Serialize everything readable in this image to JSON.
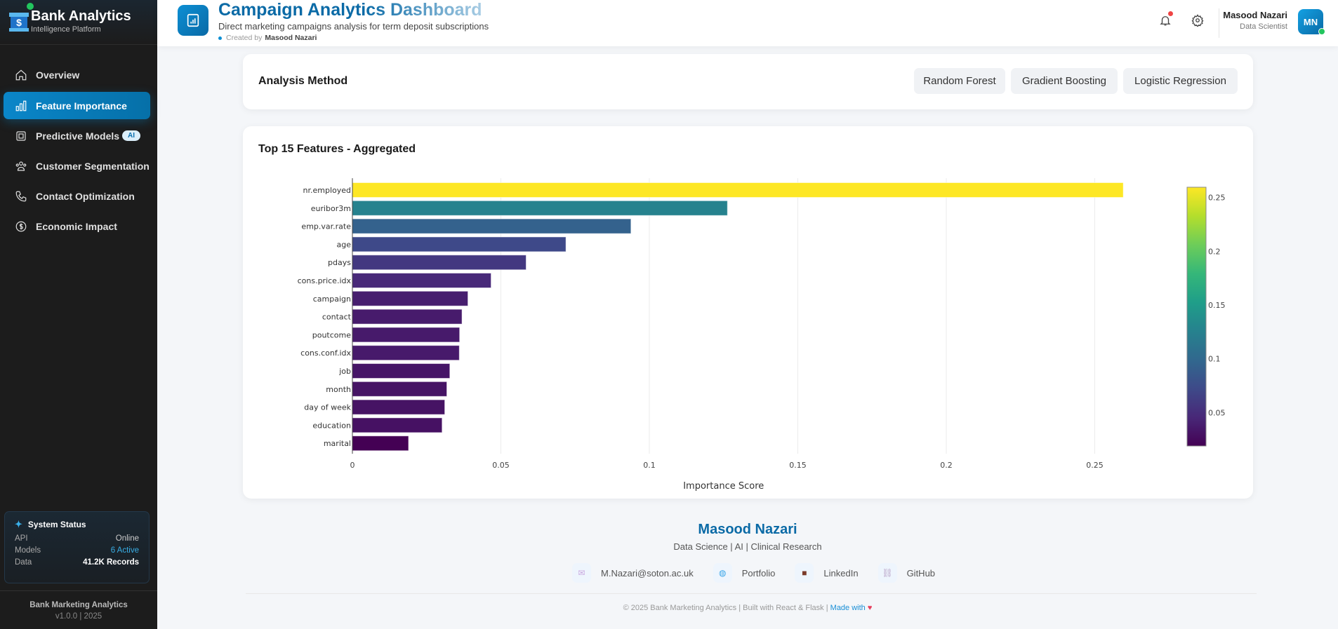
{
  "sidebar": {
    "brand": "Bank Analytics",
    "brand_sub": "Intelligence Platform",
    "items": [
      {
        "label": "Overview",
        "icon": "home-icon"
      },
      {
        "label": "Feature Importance",
        "icon": "bar-chart-icon",
        "active": true
      },
      {
        "label": "Predictive Models",
        "icon": "cpu-icon",
        "badge": "AI"
      },
      {
        "label": "Customer Segmentation",
        "icon": "users-icon"
      },
      {
        "label": "Contact Optimization",
        "icon": "phone-icon"
      },
      {
        "label": "Economic Impact",
        "icon": "dollar-icon"
      }
    ],
    "status": {
      "title": "System Status",
      "rows": [
        {
          "label": "API",
          "value": "Online"
        },
        {
          "label": "Models",
          "value": "6 Active"
        },
        {
          "label": "Data",
          "value": "41.2K Records"
        }
      ]
    },
    "footer_title": "Bank Marketing Analytics",
    "footer_version": "v1.0.0 | 2025"
  },
  "header": {
    "title": "Campaign Analytics Dashboard",
    "subtitle": "Direct marketing campaigns analysis for term deposit subscriptions",
    "created_by_label": "Created by",
    "created_by_name": "Masood Nazari",
    "user_name": "Masood Nazari",
    "user_role": "Data Scientist",
    "avatar_initials": "MN",
    "has_notification": true
  },
  "method": {
    "title": "Analysis Method",
    "buttons": [
      "Random Forest",
      "Gradient Boosting",
      "Logistic Regression"
    ]
  },
  "chart_card": {
    "title": "Top 15 Features - Aggregated"
  },
  "chart_data": {
    "type": "bar",
    "orientation": "horizontal",
    "title": "Top 15 Features - Aggregated",
    "xlabel": "Importance Score",
    "ylabel": "",
    "categories": [
      "nr.employed",
      "euribor3m",
      "emp.var.rate",
      "age",
      "pdays",
      "cons.price.idx",
      "campaign",
      "contact",
      "poutcome",
      "cons.conf.idx",
      "job",
      "month",
      "day of week",
      "education",
      "marital"
    ],
    "values": [
      0.2596,
      0.1263,
      0.0938,
      0.0719,
      0.0585,
      0.0467,
      0.0389,
      0.0369,
      0.0361,
      0.036,
      0.0328,
      0.0318,
      0.0311,
      0.0302,
      0.0189
    ],
    "xlim": [
      0,
      0.27
    ],
    "xticks": [
      "0",
      "0.05",
      "0.1",
      "0.15",
      "0.2",
      "0.25"
    ],
    "grid": true,
    "colorscale": "Viridis",
    "colorbar_ticks": [
      "0.05",
      "0.1",
      "0.15",
      "0.2",
      "0.25"
    ]
  },
  "footer": {
    "name": "Masood Nazari",
    "tagline": "Data Science | AI | Clinical Research",
    "links": [
      {
        "label": "M.Nazari@soton.ac.uk",
        "icon": "envelope-icon"
      },
      {
        "label": "Portfolio",
        "icon": "globe-icon"
      },
      {
        "label": "LinkedIn",
        "icon": "briefcase-icon"
      },
      {
        "label": "GitHub",
        "icon": "link-icon"
      }
    ],
    "copyright": "© 2025 Bank Marketing Analytics | Built with React & Flask |",
    "made_with": "Made with",
    "heart": "♥"
  },
  "colors": {
    "accent": "#0a86c9",
    "sidebar_bg": "#1c1c1c",
    "online": "#22c55e",
    "notification": "#ef4444"
  }
}
